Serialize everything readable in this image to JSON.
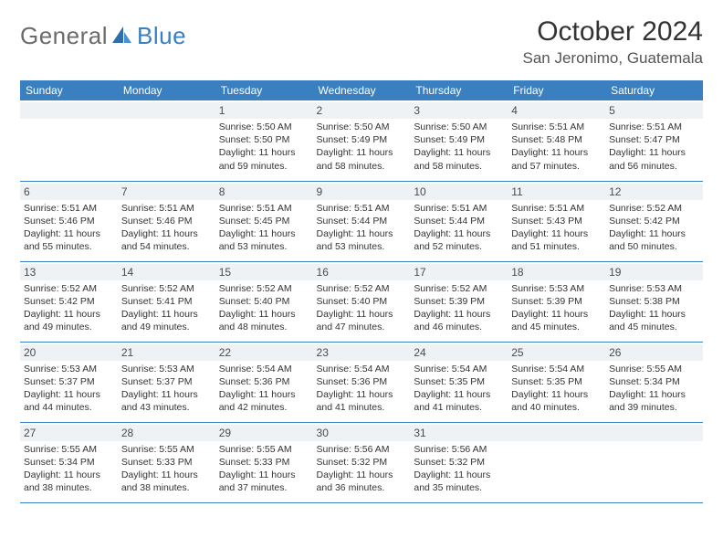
{
  "logo": {
    "general": "General",
    "blue": "Blue"
  },
  "title": "October 2024",
  "location": "San Jeronimo, Guatemala",
  "colors": {
    "header_bg": "#3a7fbf",
    "header_fg": "#ffffff",
    "daynum_bg": "#eef2f5",
    "row_border": "#3a7fbf",
    "text": "#333333",
    "logo_gray": "#6b6b6b",
    "logo_blue": "#3a7fbf",
    "background": "#ffffff"
  },
  "day_headers": [
    "Sunday",
    "Monday",
    "Tuesday",
    "Wednesday",
    "Thursday",
    "Friday",
    "Saturday"
  ],
  "weeks": [
    [
      null,
      null,
      {
        "n": "1",
        "sunrise": "5:50 AM",
        "sunset": "5:50 PM",
        "daylight": "11 hours and 59 minutes."
      },
      {
        "n": "2",
        "sunrise": "5:50 AM",
        "sunset": "5:49 PM",
        "daylight": "11 hours and 58 minutes."
      },
      {
        "n": "3",
        "sunrise": "5:50 AM",
        "sunset": "5:49 PM",
        "daylight": "11 hours and 58 minutes."
      },
      {
        "n": "4",
        "sunrise": "5:51 AM",
        "sunset": "5:48 PM",
        "daylight": "11 hours and 57 minutes."
      },
      {
        "n": "5",
        "sunrise": "5:51 AM",
        "sunset": "5:47 PM",
        "daylight": "11 hours and 56 minutes."
      }
    ],
    [
      {
        "n": "6",
        "sunrise": "5:51 AM",
        "sunset": "5:46 PM",
        "daylight": "11 hours and 55 minutes."
      },
      {
        "n": "7",
        "sunrise": "5:51 AM",
        "sunset": "5:46 PM",
        "daylight": "11 hours and 54 minutes."
      },
      {
        "n": "8",
        "sunrise": "5:51 AM",
        "sunset": "5:45 PM",
        "daylight": "11 hours and 53 minutes."
      },
      {
        "n": "9",
        "sunrise": "5:51 AM",
        "sunset": "5:44 PM",
        "daylight": "11 hours and 53 minutes."
      },
      {
        "n": "10",
        "sunrise": "5:51 AM",
        "sunset": "5:44 PM",
        "daylight": "11 hours and 52 minutes."
      },
      {
        "n": "11",
        "sunrise": "5:51 AM",
        "sunset": "5:43 PM",
        "daylight": "11 hours and 51 minutes."
      },
      {
        "n": "12",
        "sunrise": "5:52 AM",
        "sunset": "5:42 PM",
        "daylight": "11 hours and 50 minutes."
      }
    ],
    [
      {
        "n": "13",
        "sunrise": "5:52 AM",
        "sunset": "5:42 PM",
        "daylight": "11 hours and 49 minutes."
      },
      {
        "n": "14",
        "sunrise": "5:52 AM",
        "sunset": "5:41 PM",
        "daylight": "11 hours and 49 minutes."
      },
      {
        "n": "15",
        "sunrise": "5:52 AM",
        "sunset": "5:40 PM",
        "daylight": "11 hours and 48 minutes."
      },
      {
        "n": "16",
        "sunrise": "5:52 AM",
        "sunset": "5:40 PM",
        "daylight": "11 hours and 47 minutes."
      },
      {
        "n": "17",
        "sunrise": "5:52 AM",
        "sunset": "5:39 PM",
        "daylight": "11 hours and 46 minutes."
      },
      {
        "n": "18",
        "sunrise": "5:53 AM",
        "sunset": "5:39 PM",
        "daylight": "11 hours and 45 minutes."
      },
      {
        "n": "19",
        "sunrise": "5:53 AM",
        "sunset": "5:38 PM",
        "daylight": "11 hours and 45 minutes."
      }
    ],
    [
      {
        "n": "20",
        "sunrise": "5:53 AM",
        "sunset": "5:37 PM",
        "daylight": "11 hours and 44 minutes."
      },
      {
        "n": "21",
        "sunrise": "5:53 AM",
        "sunset": "5:37 PM",
        "daylight": "11 hours and 43 minutes."
      },
      {
        "n": "22",
        "sunrise": "5:54 AM",
        "sunset": "5:36 PM",
        "daylight": "11 hours and 42 minutes."
      },
      {
        "n": "23",
        "sunrise": "5:54 AM",
        "sunset": "5:36 PM",
        "daylight": "11 hours and 41 minutes."
      },
      {
        "n": "24",
        "sunrise": "5:54 AM",
        "sunset": "5:35 PM",
        "daylight": "11 hours and 41 minutes."
      },
      {
        "n": "25",
        "sunrise": "5:54 AM",
        "sunset": "5:35 PM",
        "daylight": "11 hours and 40 minutes."
      },
      {
        "n": "26",
        "sunrise": "5:55 AM",
        "sunset": "5:34 PM",
        "daylight": "11 hours and 39 minutes."
      }
    ],
    [
      {
        "n": "27",
        "sunrise": "5:55 AM",
        "sunset": "5:34 PM",
        "daylight": "11 hours and 38 minutes."
      },
      {
        "n": "28",
        "sunrise": "5:55 AM",
        "sunset": "5:33 PM",
        "daylight": "11 hours and 38 minutes."
      },
      {
        "n": "29",
        "sunrise": "5:55 AM",
        "sunset": "5:33 PM",
        "daylight": "11 hours and 37 minutes."
      },
      {
        "n": "30",
        "sunrise": "5:56 AM",
        "sunset": "5:32 PM",
        "daylight": "11 hours and 36 minutes."
      },
      {
        "n": "31",
        "sunrise": "5:56 AM",
        "sunset": "5:32 PM",
        "daylight": "11 hours and 35 minutes."
      },
      null,
      null
    ]
  ],
  "labels": {
    "sunrise": "Sunrise: ",
    "sunset": "Sunset: ",
    "daylight": "Daylight: "
  }
}
